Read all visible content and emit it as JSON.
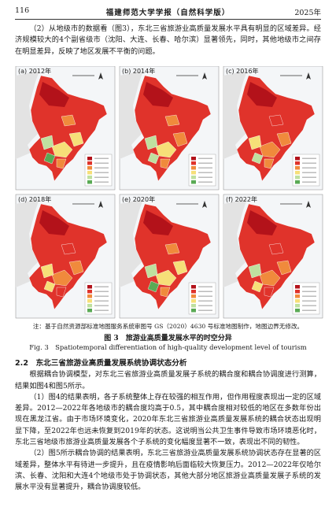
{
  "header": {
    "page": "116",
    "journal": "福建师范大学学报（自然科学版）",
    "year": "2025年"
  },
  "intro": "（2）从地级市的数据看（图3），东北三省旅游业高质量发展水平具有明显的区域差异。经济规模较大的4个副省级市（沈阳、大连、长春、哈尔滨）显著领先，同时，其他地级市之间存在明显差异，反映了地区发展不平衡的问题。",
  "figure": {
    "panels": [
      "(a) 2012年",
      "(b) 2014年",
      "(c) 2016年",
      "(d) 2018年",
      "(e) 2020年",
      "(f) 2022年"
    ],
    "note": "注：基于自然资源部标准地图服务系统审图号 GS（2020）4630 号标准地图制作，地图边界无修改。",
    "caption_cn": "图 3　旅游业高质量发展水平的时空分异",
    "caption_en": "Fig. 3　Spatiotemporal differentiation of high-quality development level of tourism"
  },
  "section": {
    "heading": "2.2　东北三省旅游业高质量发展系统协调状态分析",
    "paragraphs": [
      "根据耦合协调模型，对东北三省旅游业高质量发展子系统的耦合度和耦合协调度进行测算，结果如图4和图5所示。",
      "（1）图4的结果表明，各子系统整体上存在较强的相互作用，但作用程度表现出一定的区域差异。2012—2022年各地级市的耦合度均高于0.5，其中耦合度相对较低的地区在多数年份出现在黑龙江省。由于市场环境变化，2020年东北三省旅游业高质量发展系统的耦合状态出现明显下降，至2022年也远未恢复到2019年的状态。这说明当公共卫生事件导致市场环境恶化时，东北三省地级市旅游业高质量发展各个子系统的变化幅度显著不一致，表现出不同的韧性。",
      "（2）图5所示耦合协调的结果表明，东北三省旅游业高质量发展系统协调状态存在显著的区域差异，整体水平有待进一步提升，且在疫情影响后面临较大恢复压力。2012—2022年仅哈尔滨、长春、沈阳和大连4个地级市处于协调状态，其他大部分地区旅游业高质量发展子系统的发展水平没有显著提升，耦合协调度较低。"
    ]
  }
}
